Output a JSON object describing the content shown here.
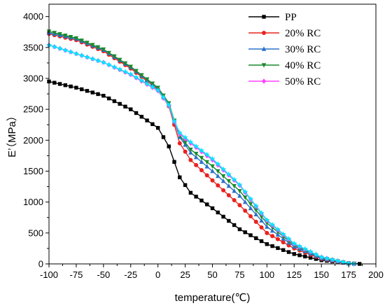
{
  "chart_data": {
    "type": "line",
    "title": "",
    "xlabel": "temperature(℃)",
    "ylabel": "E’（MPa）",
    "xlim": [
      -100,
      200
    ],
    "ylim": [
      0,
      4200
    ],
    "x_ticks": [
      -100,
      -75,
      -50,
      -25,
      0,
      25,
      50,
      75,
      100,
      125,
      150,
      175,
      200
    ],
    "y_ticks": [
      0,
      500,
      1000,
      1500,
      2000,
      2500,
      3000,
      3500,
      4000
    ],
    "grid": false,
    "legend_position": "top-right",
    "series": [
      {
        "name": "PP",
        "color": "#000000",
        "marker": "square",
        "x": [
          -100,
          -75,
          -50,
          -25,
          0,
          10,
          15,
          20,
          30,
          50,
          75,
          100,
          125,
          150,
          175,
          185
        ],
        "y": [
          2950,
          2850,
          2720,
          2500,
          2200,
          1900,
          1650,
          1400,
          1150,
          900,
          560,
          320,
          160,
          60,
          10,
          0
        ]
      },
      {
        "name": "20% RC",
        "color": "#e8231e",
        "marker": "circle",
        "x": [
          -100,
          -75,
          -50,
          -25,
          0,
          10,
          15,
          20,
          30,
          50,
          75,
          100,
          125,
          150,
          175,
          180
        ],
        "y": [
          3720,
          3620,
          3440,
          3160,
          2820,
          2550,
          2250,
          1950,
          1680,
          1350,
          950,
          500,
          250,
          80,
          5,
          0
        ]
      },
      {
        "name": "30% RC",
        "color": "#2a72c8",
        "marker": "triangle-up",
        "x": [
          -100,
          -75,
          -50,
          -25,
          0,
          10,
          15,
          20,
          30,
          50,
          75,
          100,
          125,
          150,
          175,
          180
        ],
        "y": [
          3740,
          3640,
          3460,
          3180,
          2840,
          2580,
          2300,
          2050,
          1800,
          1500,
          1100,
          600,
          280,
          90,
          5,
          0
        ]
      },
      {
        "name": "40% RC",
        "color": "#1a8a2e",
        "marker": "triangle-down",
        "x": [
          -100,
          -75,
          -50,
          -25,
          0,
          10,
          15,
          20,
          30,
          50,
          75,
          100,
          125,
          150,
          175,
          180
        ],
        "y": [
          3760,
          3650,
          3470,
          3190,
          2850,
          2600,
          2320,
          2080,
          1850,
          1580,
          1180,
          660,
          300,
          100,
          5,
          0
        ]
      },
      {
        "name": "50% RC",
        "color": "#ff44ff",
        "marker": "diamond",
        "x": [
          -100,
          -75,
          -50,
          -25,
          0,
          10,
          15,
          20,
          30,
          50,
          75,
          100,
          125,
          150,
          175,
          180
        ],
        "y": [
          3540,
          3400,
          3260,
          3060,
          2800,
          2560,
          2300,
          2100,
          1950,
          1680,
          1270,
          700,
          320,
          110,
          10,
          0
        ]
      },
      {
        "name": "",
        "color": "#00e5ff",
        "marker": "star",
        "x": [
          -100,
          -75,
          -50,
          -25,
          0,
          10,
          15,
          20,
          30,
          50,
          75,
          100,
          125,
          150,
          175,
          180
        ],
        "y": [
          3540,
          3400,
          3260,
          3070,
          2810,
          2570,
          2310,
          2120,
          1970,
          1700,
          1280,
          710,
          330,
          110,
          10,
          0
        ]
      }
    ]
  }
}
